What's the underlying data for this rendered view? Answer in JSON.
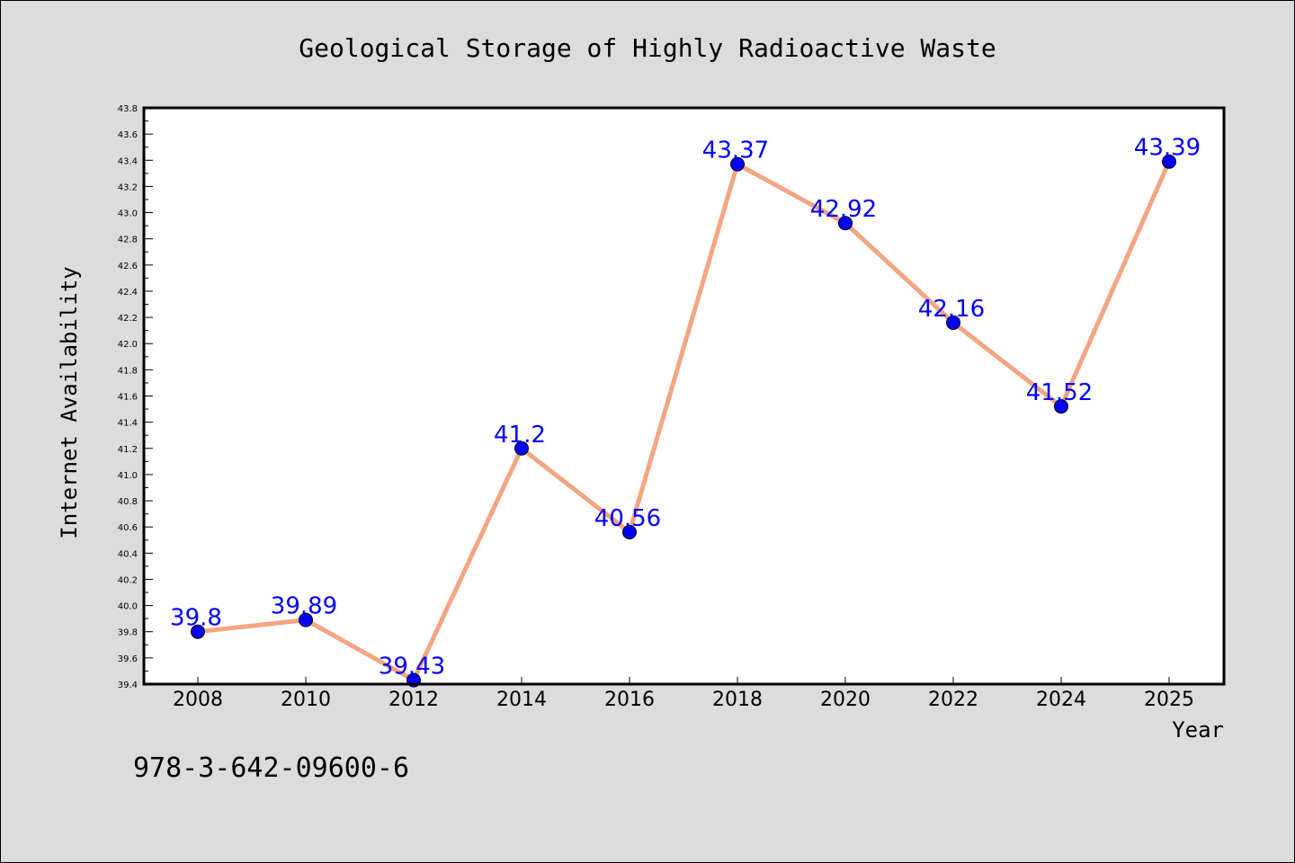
{
  "colors": {
    "background": "#dcdcdc",
    "plot_background": "#ffffff",
    "line": "#f4a582",
    "marker": "#0000ff",
    "data_label": "#0000ff",
    "axis": "#000000"
  },
  "footer": {
    "isbn": "978-3-642-09600-6"
  },
  "chart_data": {
    "type": "line",
    "title": "Geological Storage of Highly Radioactive Waste",
    "xlabel": "Year",
    "ylabel": "Internet Availability",
    "categories": [
      "2008",
      "2010",
      "2012",
      "2014",
      "2016",
      "2018",
      "2020",
      "2022",
      "2024",
      "2025"
    ],
    "series": [
      {
        "values": [
          39.8,
          39.89,
          39.43,
          41.2,
          40.56,
          43.37,
          42.92,
          42.16,
          41.52,
          43.39
        ],
        "labels": [
          "39.8",
          "39.89",
          "39.43",
          "41.2",
          "40.56",
          "43.37",
          "42.92",
          "42.16",
          "41.52",
          "43.39"
        ]
      }
    ],
    "ylim": [
      39.4,
      43.8
    ],
    "y_ticks": [
      "39.4",
      "39.6",
      "39.8",
      "40.0",
      "40.2",
      "40.4",
      "40.6",
      "40.8",
      "41.0",
      "41.2",
      "41.4",
      "41.6",
      "41.8",
      "42.0",
      "42.2",
      "42.4",
      "42.6",
      "42.8",
      "43.0",
      "43.2",
      "43.4",
      "43.6",
      "43.8"
    ],
    "grid": false,
    "legend": "none",
    "markers": "circle"
  }
}
